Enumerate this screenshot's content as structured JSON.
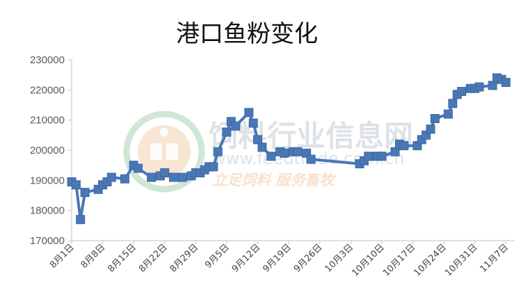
{
  "chart_data": {
    "type": "line",
    "title": "港口鱼粉变化",
    "xlabel": "",
    "ylabel": "",
    "ylim": [
      170000,
      230000
    ],
    "yticks": [
      170000,
      180000,
      190000,
      200000,
      210000,
      220000,
      230000
    ],
    "ytick_labels": [
      "170000",
      "180000",
      "190000",
      "200000",
      "210000",
      "220000",
      "230000"
    ],
    "xticks": [
      "8月1日",
      "8月8日",
      "8月15日",
      "8月22日",
      "8月29日",
      "9月5日",
      "9月12日",
      "9月19日",
      "9月26日",
      "10月3日",
      "10月10日",
      "10月17日",
      "10月24日",
      "10月31日",
      "11月7日"
    ],
    "xlim_days": [
      0,
      100
    ],
    "grid": false,
    "legend": "none",
    "marker": "square",
    "series": [
      {
        "color": "#4a77b5",
        "x": [
          0,
          1,
          2,
          3,
          6,
          7,
          8,
          9,
          12,
          14,
          15,
          18,
          20,
          21,
          23,
          25,
          27,
          28,
          29,
          30,
          31,
          32,
          33,
          35,
          36,
          37,
          40,
          41,
          42,
          43,
          45,
          47,
          48,
          50,
          51,
          53,
          54,
          65,
          66,
          67,
          69,
          70,
          73,
          74,
          75,
          78,
          79,
          80,
          81,
          82,
          85,
          86,
          87,
          88,
          90,
          91,
          92,
          95,
          96,
          97,
          98
        ],
        "y": [
          189500,
          188500,
          177000,
          186000,
          187000,
          188500,
          189500,
          191000,
          190500,
          195000,
          194000,
          191000,
          191500,
          192500,
          191000,
          191000,
          191500,
          192500,
          192500,
          193500,
          194500,
          194500,
          199500,
          206000,
          209500,
          208000,
          212500,
          209000,
          203500,
          201000,
          198000,
          199500,
          199000,
          199500,
          199500,
          199000,
          197000,
          195500,
          196500,
          198000,
          198000,
          198000,
          199500,
          202000,
          201500,
          201500,
          203500,
          205000,
          207000,
          210500,
          212000,
          215500,
          218500,
          219500,
          220500,
          220500,
          221000,
          221500,
          224000,
          223500,
          222500
        ]
      }
    ]
  },
  "watermark": {
    "site_name": "饲料行业信息网",
    "url": "www.feedtrade.com.cn",
    "slogan": "立足饲料  服务畜牧",
    "logo_color_green": "#b9dcc2",
    "logo_color_orange": "#f4b98a"
  }
}
